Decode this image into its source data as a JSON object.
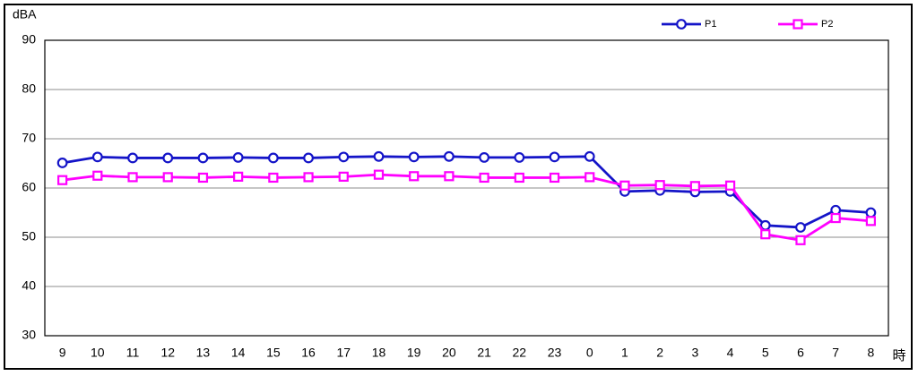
{
  "chart_data": {
    "type": "line",
    "y_label": "dBA",
    "x_label": "時",
    "categories": [
      "9",
      "10",
      "11",
      "12",
      "13",
      "14",
      "15",
      "16",
      "17",
      "18",
      "19",
      "20",
      "21",
      "22",
      "23",
      "0",
      "1",
      "2",
      "3",
      "4",
      "5",
      "6",
      "7",
      "8"
    ],
    "series": [
      {
        "name": "P1",
        "color": "#1414c8",
        "marker": "circle",
        "values": [
          65.1,
          66.3,
          66.1,
          66.1,
          66.1,
          66.2,
          66.1,
          66.1,
          66.3,
          66.4,
          66.3,
          66.4,
          66.2,
          66.2,
          66.3,
          66.4,
          59.3,
          59.5,
          59.2,
          59.3,
          52.4,
          52.0,
          55.5,
          55.0
        ]
      },
      {
        "name": "P2",
        "color": "#ff00ff",
        "marker": "square",
        "values": [
          61.6,
          62.5,
          62.2,
          62.2,
          62.1,
          62.3,
          62.1,
          62.2,
          62.3,
          62.7,
          62.4,
          62.4,
          62.1,
          62.1,
          62.1,
          62.2,
          60.5,
          60.6,
          60.4,
          60.5,
          50.6,
          49.4,
          53.9,
          53.3
        ]
      }
    ],
    "ylim": [
      30,
      90
    ],
    "yticks": [
      30,
      40,
      50,
      60,
      70,
      80,
      90
    ],
    "grid": true
  }
}
